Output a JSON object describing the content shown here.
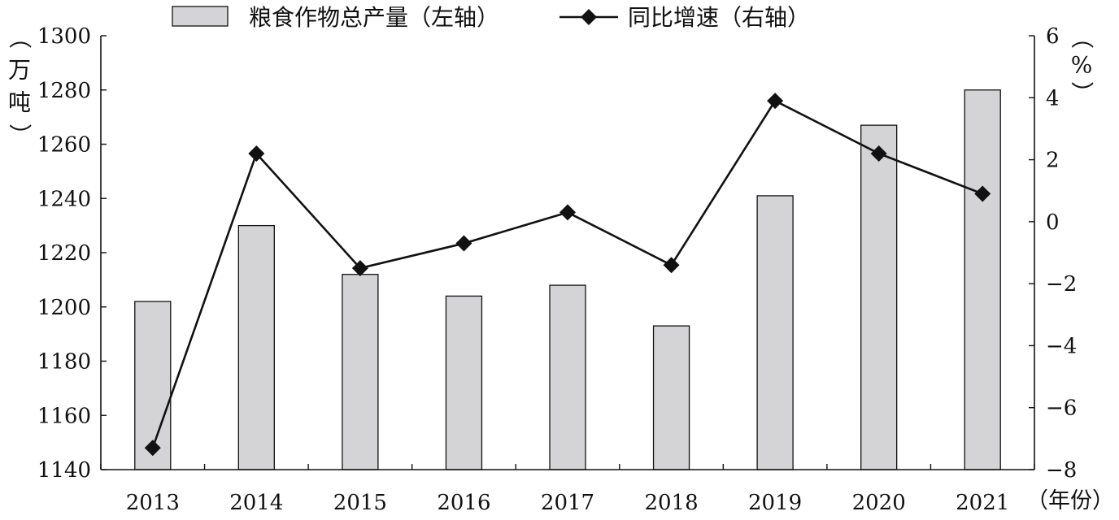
{
  "chart_data": {
    "type": "bar+line",
    "categories": [
      "2013",
      "2014",
      "2015",
      "2016",
      "2017",
      "2018",
      "2019",
      "2020",
      "2021"
    ],
    "series": [
      {
        "name": "粮食作物总产量（左轴）",
        "type": "bar",
        "axis": "left",
        "color": "#d4d4d6",
        "values": [
          1202,
          1230,
          1212,
          1204,
          1208,
          1193,
          1241,
          1267,
          1280
        ]
      },
      {
        "name": "同比增速（右轴）",
        "type": "line",
        "axis": "right",
        "color": "#111111",
        "marker": "diamond",
        "values": [
          -7.3,
          2.2,
          -1.5,
          -0.7,
          0.3,
          -1.4,
          3.9,
          2.2,
          0.9
        ]
      }
    ],
    "y_left": {
      "label": "（万吨）",
      "range": [
        1140,
        1300
      ],
      "ticks": [
        "1140",
        "1160",
        "1180",
        "1200",
        "1220",
        "1240",
        "1260",
        "1280",
        "1300"
      ]
    },
    "y_right": {
      "label": "（%）",
      "range": [
        -8,
        6
      ],
      "ticks": [
        "−8",
        "−6",
        "−4",
        "−2",
        "0",
        "2",
        "4",
        "6"
      ]
    },
    "x_label": "（年份）",
    "legend": {
      "position": "top-center"
    },
    "grid": false
  }
}
